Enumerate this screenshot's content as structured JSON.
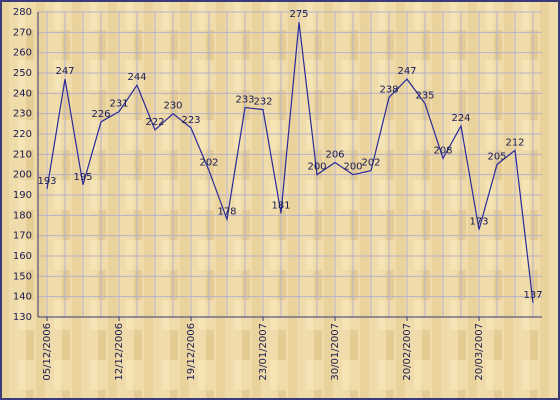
{
  "chart_data": {
    "type": "line",
    "categories": [
      "05/12/2006",
      null,
      null,
      null,
      "12/12/2006",
      null,
      null,
      null,
      "19/12/2006",
      null,
      null,
      null,
      "23/01/2007",
      null,
      null,
      null,
      "30/01/2007",
      null,
      null,
      null,
      "20/02/2007",
      null,
      null,
      null,
      "20/03/2007",
      null,
      null,
      null
    ],
    "series": [
      {
        "color": "#2a2a9a",
        "values": [
          193,
          247,
          195,
          226,
          231,
          244,
          222,
          230,
          223,
          202,
          178,
          233,
          232,
          181,
          275,
          200,
          206,
          200,
          202,
          238,
          247,
          235,
          208,
          224,
          173,
          205,
          212,
          137
        ]
      }
    ],
    "ylim": [
      130,
      280
    ],
    "yticks": [
      130,
      140,
      150,
      160,
      170,
      180,
      190,
      200,
      210,
      220,
      230,
      240,
      250,
      260,
      270,
      280
    ],
    "grid": true
  }
}
